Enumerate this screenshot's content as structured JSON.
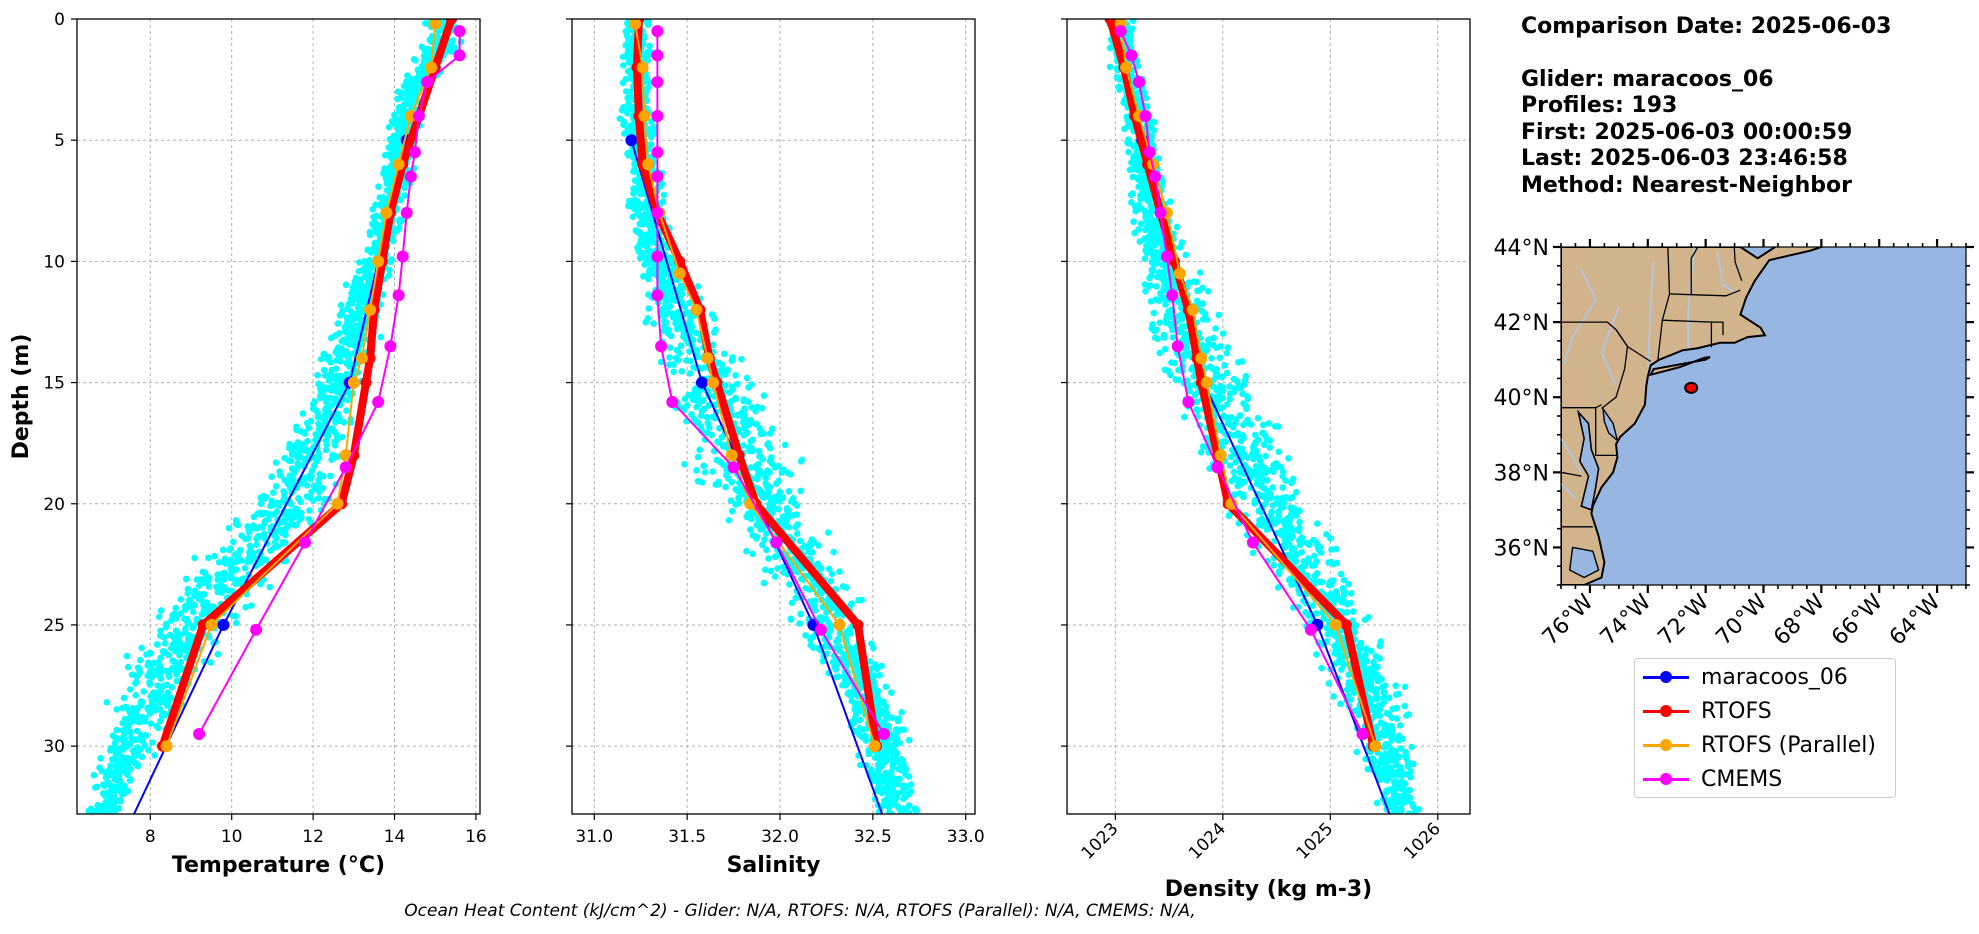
{
  "info": {
    "comparison_date": "Comparison Date: 2025-06-03",
    "glider": "Glider: maracoos_06",
    "profiles": "Profiles: 193",
    "first": "First: 2025-06-03 00:00:59",
    "last": "Last: 2025-06-03 23:46:58",
    "method": "Method: Nearest-Neighbor"
  },
  "footer": "Ocean Heat Content (kJ/cm^2) - Glider: N/A,  RTOFS: N/A,  RTOFS (Parallel): N/A,  CMEMS: N/A,",
  "legend": [
    {
      "label": "maracoos_06",
      "color": "#0000ff"
    },
    {
      "label": "RTOFS",
      "color": "#ff0000"
    },
    {
      "label": "RTOFS (Parallel)",
      "color": "#ffa500"
    },
    {
      "label": "CMEMS",
      "color": "#ff00ff"
    }
  ],
  "colors": {
    "scatter": "#00ffff",
    "glider": "#0000ff",
    "rtofs": "#ff0000",
    "rtofs_parallel": "#ffa500",
    "cmems": "#ff00ff",
    "land": "#d2b48c",
    "ocean": "#97b6e1",
    "rivers": "#aac8ea"
  },
  "chart_data": [
    {
      "type": "line",
      "xlabel": "Temperature (°C)",
      "ylabel": "Depth (m)",
      "xlim": [
        6.2,
        16.1
      ],
      "ylim": [
        32.8,
        0
      ],
      "xticks": [
        8,
        10,
        12,
        14,
        16
      ],
      "yticks": [
        0,
        5,
        10,
        15,
        20,
        25,
        30
      ],
      "grid": true,
      "scatter_band": [
        {
          "depth": 1,
          "min": 14.6,
          "max": 15.8
        },
        {
          "depth": 3,
          "min": 13.9,
          "max": 14.9
        },
        {
          "depth": 5,
          "min": 13.7,
          "max": 14.7
        },
        {
          "depth": 8,
          "min": 13.3,
          "max": 14.4
        },
        {
          "depth": 11,
          "min": 12.7,
          "max": 14.0
        },
        {
          "depth": 14,
          "min": 12.0,
          "max": 13.6
        },
        {
          "depth": 17,
          "min": 11.2,
          "max": 13.2
        },
        {
          "depth": 20,
          "min": 10.2,
          "max": 12.6
        },
        {
          "depth": 23,
          "min": 8.4,
          "max": 11.4
        },
        {
          "depth": 26,
          "min": 7.2,
          "max": 10.0
        },
        {
          "depth": 29,
          "min": 6.7,
          "max": 8.8
        },
        {
          "depth": 32.8,
          "min": 6.4,
          "max": 7.4
        }
      ],
      "series": [
        {
          "name": "maracoos_06",
          "key": "glider",
          "width": 2,
          "points": [
            [
              14.3,
              5
            ],
            [
              12.9,
              15
            ],
            [
              9.8,
              25
            ],
            [
              7.6,
              32.8
            ]
          ]
        },
        {
          "name": "RTOFS",
          "key": "rtofs",
          "width": 8,
          "points": [
            [
              15.4,
              0
            ],
            [
              15.0,
              2
            ],
            [
              14.6,
              4
            ],
            [
              14.2,
              6
            ],
            [
              13.9,
              8
            ],
            [
              13.7,
              10
            ],
            [
              13.5,
              12
            ],
            [
              13.4,
              14
            ],
            [
              13.3,
              15
            ],
            [
              13.0,
              18
            ],
            [
              12.7,
              20
            ],
            [
              9.3,
              25
            ],
            [
              8.3,
              30
            ]
          ]
        },
        {
          "name": "RTOFS (Parallel)",
          "key": "rtofs_parallel",
          "width": 2,
          "points": [
            [
              15.0,
              0.2
            ],
            [
              14.9,
              2
            ],
            [
              14.4,
              4
            ],
            [
              14.1,
              6
            ],
            [
              13.8,
              8
            ],
            [
              13.6,
              10
            ],
            [
              13.4,
              12
            ],
            [
              13.2,
              14
            ],
            [
              13.0,
              15
            ],
            [
              12.8,
              18
            ],
            [
              12.6,
              20
            ],
            [
              9.5,
              25
            ],
            [
              8.4,
              30
            ]
          ]
        },
        {
          "name": "CMEMS",
          "key": "cmems",
          "width": 2,
          "points": [
            [
              15.6,
              0.5
            ],
            [
              15.6,
              1.5
            ],
            [
              14.8,
              2.6
            ],
            [
              14.6,
              4
            ],
            [
              14.5,
              5.5
            ],
            [
              14.4,
              6.5
            ],
            [
              14.3,
              8
            ],
            [
              14.2,
              9.8
            ],
            [
              14.1,
              11.4
            ],
            [
              13.9,
              13.5
            ],
            [
              13.6,
              15.8
            ],
            [
              12.8,
              18.5
            ],
            [
              11.8,
              21.6
            ],
            [
              10.6,
              25.2
            ],
            [
              9.2,
              29.5
            ]
          ]
        }
      ]
    },
    {
      "type": "line",
      "xlabel": "Salinity",
      "xlim": [
        30.88,
        33.05
      ],
      "ylim": [
        32.8,
        0
      ],
      "xticks": [
        31.0,
        31.5,
        32.0,
        32.5,
        33.0
      ],
      "yticks": [
        0,
        5,
        10,
        15,
        20,
        25,
        30
      ],
      "grid": true,
      "scatter_band": [
        {
          "depth": 1,
          "min": 31.12,
          "max": 31.33
        },
        {
          "depth": 5,
          "min": 31.12,
          "max": 31.37
        },
        {
          "depth": 9,
          "min": 31.15,
          "max": 31.46
        },
        {
          "depth": 12,
          "min": 31.22,
          "max": 31.65
        },
        {
          "depth": 15,
          "min": 31.3,
          "max": 31.98
        },
        {
          "depth": 18,
          "min": 31.4,
          "max": 32.15
        },
        {
          "depth": 21,
          "min": 31.7,
          "max": 32.3
        },
        {
          "depth": 24,
          "min": 31.95,
          "max": 32.48
        },
        {
          "depth": 27,
          "min": 32.2,
          "max": 32.62
        },
        {
          "depth": 30,
          "min": 32.38,
          "max": 32.74
        },
        {
          "depth": 32.8,
          "min": 32.48,
          "max": 32.78
        }
      ],
      "series": [
        {
          "name": "maracoos_06",
          "key": "glider",
          "width": 2,
          "points": [
            [
              31.2,
              5
            ],
            [
              31.58,
              15
            ],
            [
              32.18,
              25
            ],
            [
              32.55,
              32.8
            ]
          ]
        },
        {
          "name": "RTOFS",
          "key": "rtofs",
          "width": 8,
          "points": [
            [
              31.24,
              0
            ],
            [
              31.23,
              2
            ],
            [
              31.24,
              4
            ],
            [
              31.26,
              6
            ],
            [
              31.34,
              8
            ],
            [
              31.46,
              10
            ],
            [
              31.57,
              12
            ],
            [
              31.62,
              14
            ],
            [
              31.66,
              15
            ],
            [
              31.78,
              18
            ],
            [
              31.87,
              20
            ],
            [
              32.42,
              25
            ],
            [
              32.52,
              30
            ]
          ]
        },
        {
          "name": "RTOFS (Parallel)",
          "key": "rtofs_parallel",
          "width": 2,
          "points": [
            [
              31.22,
              0.2
            ],
            [
              31.26,
              2
            ],
            [
              31.27,
              4
            ],
            [
              31.29,
              6
            ],
            [
              31.35,
              8
            ],
            [
              31.46,
              10.5
            ],
            [
              31.55,
              12
            ],
            [
              31.61,
              14
            ],
            [
              31.64,
              15
            ],
            [
              31.74,
              18
            ],
            [
              31.84,
              20
            ],
            [
              32.32,
              25
            ],
            [
              32.51,
              30
            ]
          ]
        },
        {
          "name": "CMEMS",
          "key": "cmems",
          "width": 2,
          "points": [
            [
              31.34,
              0.5
            ],
            [
              31.34,
              1.5
            ],
            [
              31.34,
              2.6
            ],
            [
              31.34,
              4
            ],
            [
              31.34,
              5.5
            ],
            [
              31.34,
              6.5
            ],
            [
              31.34,
              8
            ],
            [
              31.34,
              9.8
            ],
            [
              31.34,
              11.4
            ],
            [
              31.36,
              13.5
            ],
            [
              31.42,
              15.8
            ],
            [
              31.75,
              18.5
            ],
            [
              31.98,
              21.6
            ],
            [
              32.22,
              25.2
            ],
            [
              32.56,
              29.5
            ]
          ]
        }
      ]
    },
    {
      "type": "line",
      "xlabel": "Density (kg m-3)",
      "xlim": [
        1022.55,
        1026.3
      ],
      "ylim": [
        32.8,
        0
      ],
      "xticks": [
        1023,
        1024,
        1025,
        1026
      ],
      "yticks": [
        0,
        5,
        10,
        15,
        20,
        25,
        30
      ],
      "grid": true,
      "scatter_band": [
        {
          "depth": 1,
          "min": 1022.9,
          "max": 1023.2
        },
        {
          "depth": 5,
          "min": 1023.05,
          "max": 1023.45
        },
        {
          "depth": 9,
          "min": 1023.1,
          "max": 1023.65
        },
        {
          "depth": 12,
          "min": 1023.2,
          "max": 1024.0
        },
        {
          "depth": 15,
          "min": 1023.35,
          "max": 1024.4
        },
        {
          "depth": 18,
          "min": 1023.6,
          "max": 1024.8
        },
        {
          "depth": 21,
          "min": 1024.0,
          "max": 1025.1
        },
        {
          "depth": 24,
          "min": 1024.5,
          "max": 1025.4
        },
        {
          "depth": 27,
          "min": 1024.9,
          "max": 1025.7
        },
        {
          "depth": 30,
          "min": 1025.2,
          "max": 1025.85
        },
        {
          "depth": 32.8,
          "min": 1025.4,
          "max": 1025.9
        }
      ],
      "series": [
        {
          "name": "maracoos_06",
          "key": "glider",
          "width": 2,
          "points": [
            [
              1023.25,
              5
            ],
            [
              1023.82,
              15
            ],
            [
              1024.88,
              25
            ],
            [
              1025.55,
              32.8
            ]
          ]
        },
        {
          "name": "RTOFS",
          "key": "rtofs",
          "width": 8,
          "points": [
            [
              1022.95,
              0
            ],
            [
              1023.08,
              2
            ],
            [
              1023.18,
              4
            ],
            [
              1023.3,
              6
            ],
            [
              1023.42,
              8
            ],
            [
              1023.55,
              10
            ],
            [
              1023.68,
              12
            ],
            [
              1023.76,
              14
            ],
            [
              1023.8,
              15
            ],
            [
              1023.95,
              18
            ],
            [
              1024.05,
              20
            ],
            [
              1025.15,
              25
            ],
            [
              1025.4,
              30
            ]
          ]
        },
        {
          "name": "RTOFS (Parallel)",
          "key": "rtofs_parallel",
          "width": 2,
          "points": [
            [
              1023.05,
              0.2
            ],
            [
              1023.1,
              2
            ],
            [
              1023.22,
              4
            ],
            [
              1023.35,
              6
            ],
            [
              1023.48,
              8
            ],
            [
              1023.6,
              10.5
            ],
            [
              1023.72,
              12
            ],
            [
              1023.8,
              14
            ],
            [
              1023.85,
              15
            ],
            [
              1023.98,
              18
            ],
            [
              1024.08,
              20
            ],
            [
              1025.05,
              25
            ],
            [
              1025.42,
              30
            ]
          ]
        },
        {
          "name": "CMEMS",
          "key": "cmems",
          "width": 2,
          "points": [
            [
              1023.05,
              0.5
            ],
            [
              1023.15,
              1.5
            ],
            [
              1023.22,
              2.6
            ],
            [
              1023.28,
              4
            ],
            [
              1023.32,
              5.5
            ],
            [
              1023.37,
              6.5
            ],
            [
              1023.42,
              8
            ],
            [
              1023.48,
              9.8
            ],
            [
              1023.53,
              11.4
            ],
            [
              1023.58,
              13.5
            ],
            [
              1023.68,
              15.8
            ],
            [
              1023.95,
              18.5
            ],
            [
              1024.28,
              21.6
            ],
            [
              1024.82,
              25.2
            ],
            [
              1025.3,
              29.5
            ]
          ]
        }
      ]
    },
    {
      "type": "map",
      "xlim": [
        -77.0,
        -63.0
      ],
      "ylim": [
        35.0,
        44.0
      ],
      "xtick_labels": [
        "76°W",
        "74°W",
        "72°W",
        "70°W",
        "68°W",
        "66°W",
        "64°W"
      ],
      "xtick_values": [
        -76,
        -74,
        -72,
        -70,
        -68,
        -66,
        -64
      ],
      "ytick_labels": [
        "44°N",
        "42°N",
        "40°N",
        "38°N",
        "36°N"
      ],
      "ytick_values": [
        44,
        42,
        40,
        38,
        36
      ],
      "glider_track": [
        [
          -72.6,
          40.3
        ],
        [
          -72.4,
          40.2
        ]
      ]
    }
  ]
}
